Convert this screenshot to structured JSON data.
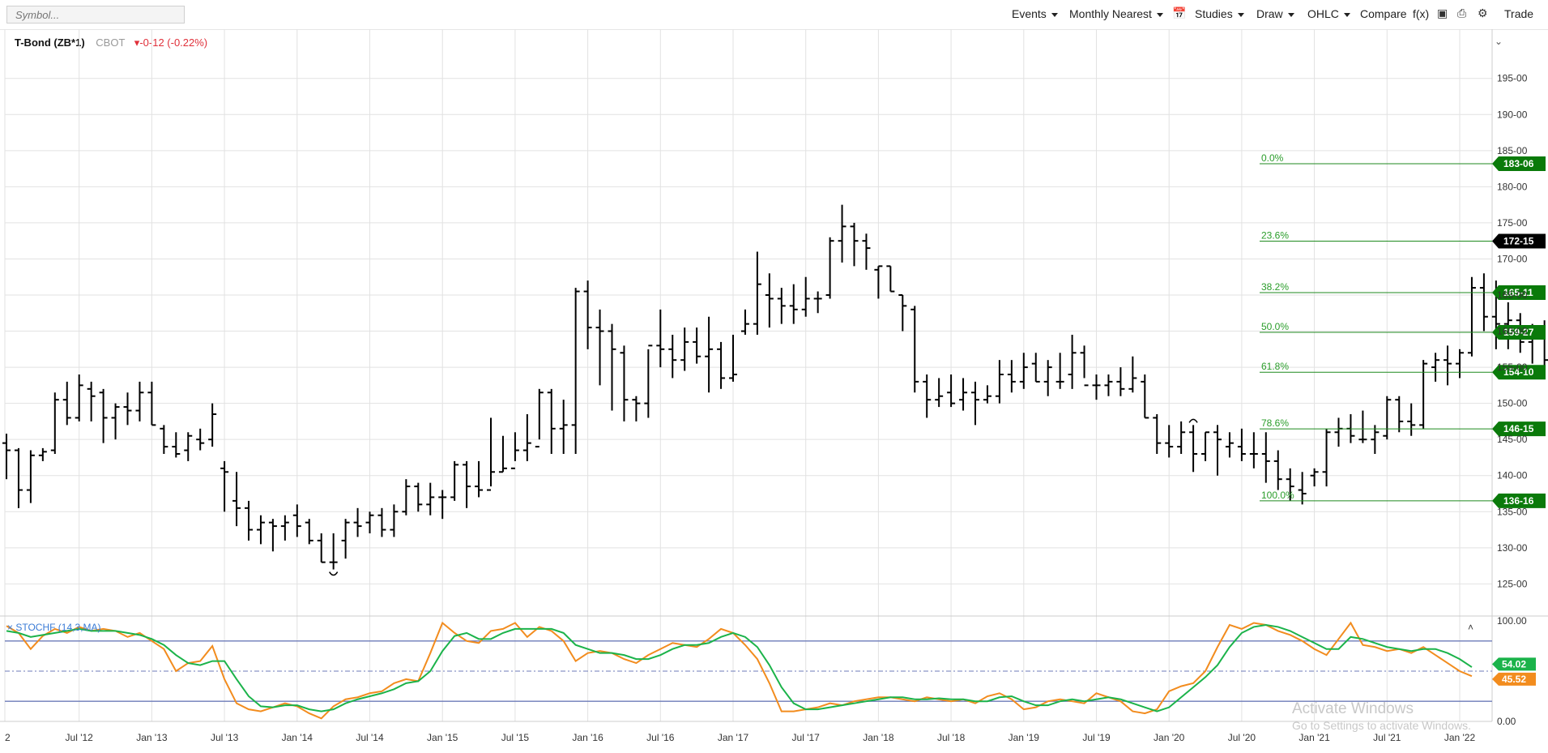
{
  "toolbar": {
    "symbol_placeholder": "Symbol...",
    "events": "Events",
    "period": "Monthly Nearest",
    "studies": "Studies",
    "draw": "Draw",
    "chart_type": "OHLC",
    "compare": "Compare",
    "fx": "f(x)",
    "trade": "Trade",
    "icons": [
      "calendar-icon",
      "camera-icon",
      "print-icon",
      "gear-icon"
    ]
  },
  "legend": {
    "name": "T-Bond (ZB*1)",
    "exchange": "CBOT",
    "change": "-0-12 (-0.22%)"
  },
  "watermark": {
    "line1": "Activate Windows",
    "line2": "Go to Settings to activate Windows."
  },
  "colors": {
    "bar": "#000000",
    "grid": "#e2e2e2",
    "fib": "#1f8a1f",
    "tag_green": "#0a7a0a",
    "tag_black": "#000000",
    "stoch_k": "#f28c1e",
    "stoch_d": "#1bb34a",
    "stoch_bands": "#6d7bb8",
    "down": "#e0303a"
  },
  "chart_data": {
    "type": "ohlc",
    "price_axis": {
      "ylim": [
        121,
        198
      ],
      "ticks": [
        "125-00",
        "130-00",
        "135-00",
        "140-00",
        "145-00",
        "150-00",
        "155-00",
        "160-00",
        "165-00",
        "170-00",
        "175-00",
        "180-00",
        "185-00",
        "190-00",
        "195-00"
      ]
    },
    "x_axis": {
      "ticks": [
        "2",
        "Jul '12",
        "Jan '13",
        "Jul '13",
        "Jan '14",
        "Jul '14",
        "Jan '15",
        "Jul '15",
        "Jan '16",
        "Jul '16",
        "Jan '17",
        "Jul '17",
        "Jan '18",
        "Jul '18",
        "Jan '19",
        "Jul '19",
        "Jan '20",
        "Jul '20",
        "Jan '21",
        "Jul '21",
        "Jan '22"
      ]
    },
    "start_month": "2012-01",
    "bars": [
      [
        144.5,
        145.8,
        139.5,
        143.5
      ],
      [
        143.5,
        143.8,
        135.5,
        138.0
      ],
      [
        138.0,
        143.5,
        136.2,
        142.8
      ],
      [
        142.8,
        143.8,
        142.0,
        143.3
      ],
      [
        143.5,
        151.5,
        143.0,
        150.5
      ],
      [
        150.5,
        153.0,
        147.0,
        148.0
      ],
      [
        148.0,
        154.0,
        147.5,
        152.5
      ],
      [
        152.0,
        153.0,
        147.5,
        151.0
      ],
      [
        151.5,
        152.0,
        144.5,
        148.0
      ],
      [
        148.0,
        150.0,
        145.0,
        149.5
      ],
      [
        149.5,
        151.5,
        147.0,
        149.0
      ],
      [
        149.0,
        153.0,
        147.5,
        151.5
      ],
      [
        151.5,
        153.0,
        147.0,
        147.0
      ],
      [
        146.5,
        147.0,
        143.0,
        144.0
      ],
      [
        144.0,
        146.0,
        142.5,
        143.0
      ],
      [
        143.5,
        146.0,
        142.0,
        145.5
      ],
      [
        145.0,
        146.5,
        143.5,
        144.5
      ],
      [
        145.0,
        150.0,
        144.0,
        148.5
      ],
      [
        141.0,
        142.0,
        135.0,
        140.5
      ],
      [
        136.5,
        140.5,
        133.0,
        135.5
      ],
      [
        135.5,
        136.5,
        131.0,
        132.5
      ],
      [
        132.5,
        134.5,
        130.5,
        133.5
      ],
      [
        133.5,
        134.0,
        129.5,
        133.0
      ],
      [
        133.0,
        134.5,
        131.0,
        133.5
      ],
      [
        134.5,
        136.0,
        131.5,
        133.0
      ],
      [
        133.5,
        134.0,
        130.5,
        131.0
      ],
      [
        131.0,
        132.0,
        128.0,
        128.0
      ],
      [
        128.0,
        132.0,
        127.0,
        128.0
      ],
      [
        131.0,
        134.0,
        128.5,
        133.5
      ],
      [
        133.5,
        135.5,
        131.5,
        133.0
      ],
      [
        133.5,
        135.0,
        132.0,
        134.5
      ],
      [
        134.5,
        135.5,
        131.5,
        132.5
      ],
      [
        132.5,
        136.0,
        131.5,
        135.0
      ],
      [
        135.0,
        139.5,
        134.5,
        138.5
      ],
      [
        138.5,
        139.0,
        135.0,
        136.0
      ],
      [
        136.0,
        139.0,
        134.5,
        137.0
      ],
      [
        137.0,
        138.0,
        134.0,
        137.0
      ],
      [
        137.0,
        142.0,
        136.5,
        141.5
      ],
      [
        141.5,
        142.0,
        135.5,
        138.5
      ],
      [
        138.5,
        142.0,
        137.0,
        138.0
      ],
      [
        138.0,
        148.0,
        138.5,
        140.5
      ],
      [
        140.5,
        145.5,
        140.5,
        141.0
      ],
      [
        141.0,
        146.0,
        142.0,
        143.5
      ],
      [
        143.5,
        148.5,
        142.0,
        144.5
      ],
      [
        144.0,
        152.0,
        145.0,
        151.5
      ],
      [
        151.5,
        152.0,
        143.0,
        146.5
      ],
      [
        146.5,
        150.5,
        143.0,
        147.0
      ],
      [
        147.0,
        166.0,
        143.0,
        165.5
      ],
      [
        165.5,
        167.0,
        157.5,
        160.5
      ],
      [
        160.5,
        163.0,
        152.5,
        160.0
      ],
      [
        160.0,
        161.0,
        149.0,
        157.5
      ],
      [
        157.0,
        158.0,
        147.5,
        150.5
      ],
      [
        150.5,
        151.0,
        147.5,
        150.0
      ],
      [
        150.0,
        157.5,
        148.0,
        158.0
      ],
      [
        158.0,
        163.0,
        155.0,
        157.5
      ],
      [
        157.5,
        159.5,
        153.5,
        156.0
      ],
      [
        156.0,
        160.5,
        154.5,
        158.5
      ],
      [
        158.5,
        160.5,
        155.5,
        156.5
      ],
      [
        156.5,
        162.0,
        151.5,
        157.5
      ],
      [
        157.5,
        158.5,
        152.0,
        153.5
      ],
      [
        153.5,
        159.5,
        153.0,
        154.0
      ],
      [
        160.0,
        163.0,
        159.5,
        161.0
      ],
      [
        161.0,
        171.0,
        159.5,
        166.5
      ],
      [
        165.0,
        168.0,
        160.5,
        164.5
      ],
      [
        164.5,
        166.0,
        161.0,
        163.5
      ],
      [
        163.5,
        166.5,
        161.0,
        163.0
      ],
      [
        163.0,
        167.5,
        162.0,
        164.5
      ],
      [
        164.5,
        165.5,
        162.5,
        164.5
      ],
      [
        165.0,
        173.0,
        164.5,
        172.5
      ],
      [
        172.5,
        177.5,
        169.5,
        174.5
      ],
      [
        174.5,
        175.0,
        169.0,
        172.5
      ],
      [
        172.5,
        173.5,
        168.5,
        171.5
      ],
      [
        168.5,
        169.0,
        164.5,
        169.0
      ],
      [
        169.0,
        169.0,
        165.5,
        165.5
      ],
      [
        165.0,
        165.0,
        160.0,
        163.5
      ],
      [
        163.0,
        163.5,
        151.5,
        153.0
      ],
      [
        153.0,
        154.0,
        148.0,
        150.5
      ],
      [
        150.5,
        153.5,
        149.5,
        151.0
      ],
      [
        151.5,
        154.0,
        149.5,
        150.0
      ],
      [
        150.5,
        153.5,
        149.0,
        151.5
      ],
      [
        151.5,
        153.0,
        147.0,
        150.5
      ],
      [
        150.5,
        152.5,
        150.0,
        151.0
      ],
      [
        151.0,
        156.0,
        150.0,
        154.0
      ],
      [
        154.0,
        156.0,
        151.5,
        153.0
      ],
      [
        153.0,
        157.0,
        152.0,
        155.0
      ],
      [
        155.5,
        157.0,
        153.0,
        153.0
      ],
      [
        153.0,
        156.0,
        151.0,
        155.0
      ],
      [
        153.0,
        157.0,
        152.0,
        153.0
      ],
      [
        154.0,
        159.5,
        152.0,
        157.0
      ],
      [
        157.0,
        158.0,
        153.5,
        152.5
      ],
      [
        152.5,
        154.0,
        150.5,
        152.5
      ],
      [
        152.5,
        154.0,
        151.0,
        153.0
      ],
      [
        153.0,
        155.0,
        151.0,
        152.0
      ],
      [
        152.0,
        156.5,
        151.5,
        153.5
      ],
      [
        153.0,
        154.0,
        148.0,
        148.0
      ],
      [
        148.0,
        148.5,
        143.0,
        144.5
      ],
      [
        144.5,
        147.0,
        142.5,
        144.0
      ],
      [
        144.0,
        147.5,
        143.0,
        146.0
      ],
      [
        146.0,
        147.0,
        140.5,
        143.0
      ],
      [
        143.0,
        146.0,
        142.0,
        146.0
      ],
      [
        146.0,
        147.0,
        140.0,
        145.0
      ],
      [
        144.0,
        146.0,
        142.5,
        144.5
      ],
      [
        144.0,
        146.5,
        142.0,
        143.0
      ],
      [
        143.0,
        146.0,
        141.0,
        143.0
      ],
      [
        143.0,
        146.0,
        139.0,
        142.0
      ],
      [
        142.0,
        143.5,
        138.0,
        139.5
      ],
      [
        139.5,
        141.0,
        136.5,
        138.5
      ],
      [
        138.0,
        140.5,
        136.0,
        137.5
      ],
      [
        140.0,
        141.0,
        138.5,
        140.5
      ],
      [
        140.5,
        146.5,
        138.5,
        146.0
      ],
      [
        146.0,
        148.0,
        144.0,
        146.5
      ],
      [
        146.5,
        148.5,
        144.5,
        145.5
      ],
      [
        145.0,
        149.0,
        144.5,
        145.0
      ],
      [
        145.0,
        147.0,
        143.0,
        146.0
      ],
      [
        145.5,
        151.0,
        145.0,
        150.5
      ],
      [
        150.5,
        151.0,
        146.0,
        147.5
      ],
      [
        147.5,
        150.0,
        145.5,
        147.0
      ],
      [
        147.0,
        156.0,
        146.5,
        155.5
      ],
      [
        155.0,
        157.0,
        153.0,
        156.0
      ],
      [
        156.0,
        158.0,
        152.5,
        155.5
      ],
      [
        155.5,
        157.5,
        153.5,
        157.0
      ],
      [
        157.0,
        167.5,
        156.5,
        166.0
      ],
      [
        166.0,
        168.0,
        160.0,
        162.0
      ],
      [
        162.0,
        167.0,
        157.5,
        161.0
      ],
      [
        161.0,
        164.0,
        157.5,
        161.5
      ],
      [
        161.5,
        162.5,
        157.0,
        158.5
      ],
      [
        158.5,
        161.0,
        155.5,
        160.0
      ],
      [
        160.0,
        161.5,
        155.0,
        156.0
      ],
      [
        156.5,
        158.0,
        154.5,
        155.5
      ],
      [
        155.5,
        164.0,
        155.0,
        163.5
      ],
      [
        163.5,
        164.5,
        156.0,
        164.0
      ],
      [
        164.0,
        172.5,
        159.5,
        171.5
      ],
      [
        171.5,
        172.0,
        168.5,
        172.0
      ],
      [
        172.0,
        193.5,
        169.0,
        179.0
      ],
      [
        179.0,
        183.0,
        177.5,
        180.0
      ],
      [
        180.0,
        182.0,
        176.5,
        181.5
      ],
      [
        181.0,
        181.0,
        177.0,
        180.0
      ],
      [
        178.5,
        180.5,
        172.5,
        177.5
      ],
      [
        178.0,
        181.0,
        175.0,
        178.0
      ],
      [
        178.5,
        182.5,
        177.5,
        182.5
      ],
      [
        182.0,
        183.5,
        175.0,
        176.5
      ],
      [
        176.5,
        180.0,
        175.0,
        176.5
      ],
      [
        176.5,
        176.5,
        173.5,
        175.5
      ],
      [
        175.5,
        176.5,
        171.5,
        172.5
      ]
    ],
    "highlight_bars": [
      {
        "index": 27,
        "marker": "low"
      },
      {
        "index": 98,
        "marker": "high"
      }
    ],
    "fibonacci": [
      {
        "label": "0.0%",
        "value": 183.1875,
        "tag": "183-06"
      },
      {
        "label": "23.6%",
        "value": 172.46875,
        "tag": "172-15"
      },
      {
        "label": "38.2%",
        "value": 165.34375,
        "tag": "165-11"
      },
      {
        "label": "50.0%",
        "value": 159.84375,
        "tag": "159-27"
      },
      {
        "label": "61.8%",
        "value": 154.3125,
        "tag": "154-10"
      },
      {
        "label": "78.6%",
        "value": 146.46875,
        "tag": "146-15"
      },
      {
        "label": "100.0%",
        "value": 136.5,
        "tag": "136-16"
      }
    ],
    "current_price_tag": "172-15",
    "stochastic": {
      "label": "STOCHF (14,3,MA)",
      "ylim": [
        0,
        100
      ],
      "ticks": [
        "0.00",
        "100.00"
      ],
      "bands": [
        20,
        80
      ],
      "midline": 50,
      "k": [
        95,
        88,
        72,
        85,
        92,
        88,
        94,
        90,
        92,
        90,
        84,
        88,
        80,
        72,
        50,
        58,
        60,
        75,
        42,
        18,
        12,
        10,
        14,
        18,
        15,
        8,
        3,
        15,
        22,
        24,
        28,
        30,
        38,
        42,
        40,
        68,
        98,
        88,
        80,
        78,
        90,
        92,
        98,
        84,
        94,
        90,
        80,
        60,
        68,
        70,
        68,
        62,
        58,
        66,
        72,
        78,
        76,
        74,
        82,
        92,
        88,
        76,
        62,
        38,
        10,
        10,
        12,
        14,
        18,
        16,
        20,
        22,
        24,
        24,
        22,
        20,
        24,
        22,
        20,
        22,
        18,
        25,
        28,
        22,
        12,
        14,
        20,
        22,
        20,
        18,
        28,
        24,
        20,
        10,
        8,
        12,
        30,
        35,
        38,
        50,
        74,
        96,
        92,
        98,
        96,
        90,
        86,
        80,
        72,
        66,
        82,
        98,
        76,
        74,
        70,
        72,
        68,
        74,
        66,
        58,
        50,
        45
      ],
      "d": [
        90,
        88,
        84,
        86,
        88,
        90,
        92,
        90,
        90,
        90,
        88,
        86,
        82,
        76,
        66,
        58,
        56,
        60,
        60,
        42,
        25,
        15,
        14,
        16,
        16,
        12,
        10,
        12,
        18,
        22,
        25,
        28,
        32,
        38,
        40,
        50,
        70,
        85,
        88,
        82,
        82,
        88,
        92,
        92,
        92,
        92,
        88,
        76,
        72,
        68,
        68,
        66,
        62,
        62,
        66,
        72,
        76,
        76,
        78,
        84,
        88,
        84,
        74,
        56,
        34,
        18,
        12,
        12,
        14,
        16,
        18,
        20,
        22,
        24,
        24,
        22,
        22,
        23,
        22,
        22,
        20,
        20,
        24,
        25,
        20,
        16,
        16,
        20,
        22,
        20,
        22,
        24,
        22,
        18,
        14,
        10,
        14,
        24,
        34,
        44,
        56,
        74,
        88,
        94,
        96,
        94,
        90,
        84,
        78,
        72,
        72,
        84,
        82,
        78,
        74,
        72,
        70,
        72,
        72,
        68,
        62,
        54
      ],
      "last_k_tag": "45.52",
      "last_d_tag": "54.02"
    }
  }
}
